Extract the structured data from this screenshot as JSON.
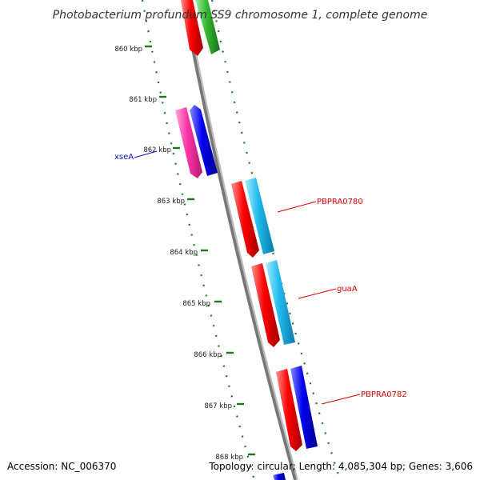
{
  "title": "Photobacterium profundum SS9 chromosome 1, complete genome",
  "footer": {
    "accession": "Accession: NC_006370",
    "summary": "Topology: circular; Length: 4,085,304 bp; Genes: 3,606"
  },
  "colors": {
    "backbone": "#777777",
    "ticks": "#1a7a1a",
    "label_red": "#e00000",
    "label_blue": "#1010c0",
    "gene_red": "#ff0000",
    "gene_green": "#33bb33",
    "gene_magenta": "#ff33aa",
    "gene_blue": "#0000ee",
    "gene_cyan": "#22bbee"
  },
  "ticks": [
    {
      "label": "860 kbp"
    },
    {
      "label": "861 kbp"
    },
    {
      "label": "862 kbp"
    },
    {
      "label": "863 kbp"
    },
    {
      "label": "864 kbp"
    },
    {
      "label": "865 kbp"
    },
    {
      "label": "866 kbp"
    },
    {
      "label": "867 kbp"
    },
    {
      "label": "868 kbp"
    }
  ],
  "gene_labels": [
    {
      "text": "xseA",
      "color": "blue"
    },
    {
      "text": "PBPRA0780",
      "color": "red"
    },
    {
      "text": "guaA",
      "color": "red"
    },
    {
      "text": "PBPRA0782",
      "color": "red"
    }
  ]
}
